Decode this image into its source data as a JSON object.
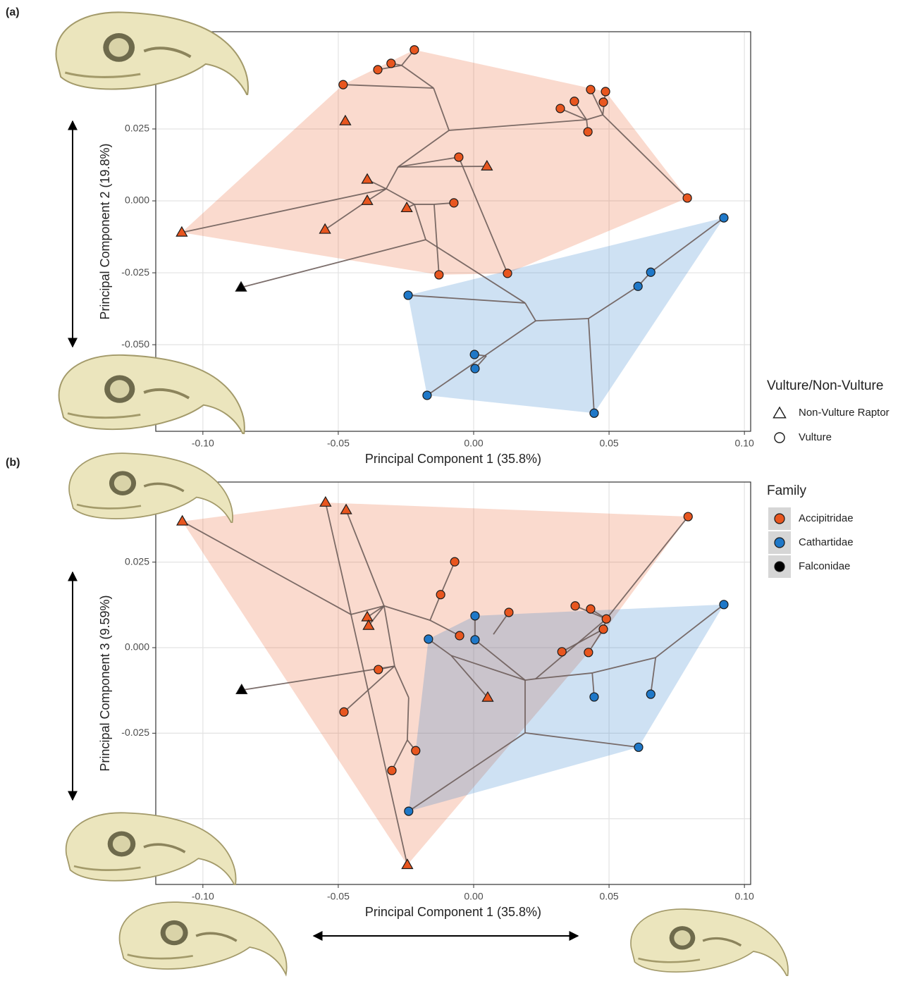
{
  "chart_data": [
    {
      "type": "scatter",
      "label": "(a)",
      "x_label": "Principal Component 1 (35.8%)",
      "y_label": "Principal Component 2 (19.8%)",
      "xlim": [
        -0.1174,
        0.1023
      ],
      "ylim": [
        -0.0801,
        0.0588
      ],
      "xticks": [
        {
          "value": -0.1,
          "label": "-0.10"
        },
        -0.05,
        {
          "value": 0,
          "label": "0.00"
        },
        0.05,
        {
          "value": 0.1,
          "label": "0.10"
        }
      ],
      "yticks": [
        {
          "value": -0.05,
          "label": "-0.050"
        },
        -0.025,
        {
          "value": 0,
          "label": "0.000"
        },
        0.025
      ],
      "grid": true,
      "series": [
        {
          "name": "Accipitridae",
          "marker": "circle",
          "color": "#e8561f",
          "x": [
            -0.0219,
            -0.0305,
            -0.0354,
            -0.0482,
            0.0432,
            0.0487,
            0.0372,
            0.032,
            0.0479,
            0.0422,
            -0.0055,
            -0.0073,
            0.0789,
            -0.0128,
            0.0125
          ],
          "values": [
            0.0525,
            0.0478,
            0.0456,
            0.0404,
            0.0387,
            0.038,
            0.0346,
            0.0321,
            0.0343,
            0.024,
            0.0152,
            -0.0007,
            0.001,
            -0.0257,
            -0.0252
          ]
        },
        {
          "name": "Accipitridae",
          "marker": "triangle",
          "color": "#e8561f",
          "x": [
            -0.0474,
            0.0049,
            -0.0393,
            -0.0393,
            -0.0247,
            -0.0549,
            -0.1078
          ],
          "values": [
            0.0277,
            0.012,
            0.0074,
            0,
            -0.0025,
            -0.01,
            -0.011
          ]
        },
        {
          "name": "Falconidae",
          "marker": "triangle",
          "color": "#000000",
          "x": [
            -0.0859
          ],
          "values": [
            -0.0301
          ]
        },
        {
          "name": "Cathartidae",
          "marker": "circle",
          "color": "#1f78c8",
          "x": [
            0.0924,
            0.0654,
            0.0607,
            -0.0242,
            0.0003,
            0.0005,
            -0.0172,
            0.0445
          ],
          "values": [
            -0.0059,
            -0.0248,
            -0.0297,
            -0.0328,
            -0.0534,
            -0.0583,
            -0.0676,
            -0.0738
          ]
        }
      ],
      "segments": [
        [
          -0.1078,
          -0.011,
          -0.0323,
          0.0042
        ],
        [
          -0.0323,
          0.0042,
          -0.0279,
          0.0118
        ],
        [
          -0.0279,
          0.0118,
          0.0049,
          0.012
        ],
        [
          -0.0279,
          0.0118,
          -0.0091,
          0.0245
        ],
        [
          -0.0091,
          0.0245,
          -0.0148,
          0.0392
        ],
        [
          -0.0148,
          0.0392,
          -0.0482,
          0.0404
        ],
        [
          -0.0148,
          0.0392,
          -0.0266,
          0.0471
        ],
        [
          -0.0266,
          0.0471,
          -0.0219,
          0.0525
        ],
        [
          -0.0266,
          0.0471,
          -0.0305,
          0.0478
        ],
        [
          -0.0266,
          0.0471,
          -0.0354,
          0.0456
        ],
        [
          -0.0091,
          0.0245,
          0.0417,
          0.0282
        ],
        [
          0.0417,
          0.0282,
          0.032,
          0.0321
        ],
        [
          0.0417,
          0.0282,
          0.0372,
          0.0346
        ],
        [
          0.0417,
          0.0282,
          0.0477,
          0.0299
        ],
        [
          0.0477,
          0.0299,
          0.0432,
          0.0387
        ],
        [
          0.0477,
          0.0299,
          0.0487,
          0.038
        ],
        [
          0.0477,
          0.0299,
          0.0789,
          0.001
        ],
        [
          0.0417,
          0.0282,
          0.0422,
          0.024
        ],
        [
          -0.0279,
          0.0118,
          -0.0055,
          0.0152
        ],
        [
          -0.0055,
          0.0152,
          0.0125,
          -0.0252
        ],
        [
          -0.0323,
          0.0042,
          -0.0393,
          0.0074
        ],
        [
          -0.0323,
          0.0042,
          -0.0393,
          0
        ],
        [
          -0.0393,
          0,
          -0.0549,
          -0.01
        ],
        [
          -0.0323,
          0.0042,
          -0.0219,
          -0.0012
        ],
        [
          -0.0219,
          -0.0012,
          -0.0247,
          -0.0025
        ],
        [
          -0.0219,
          -0.0012,
          -0.0146,
          -0.0012
        ],
        [
          -0.0146,
          -0.0012,
          -0.0073,
          -0.0007
        ],
        [
          -0.0146,
          -0.0012,
          -0.0128,
          -0.0257
        ],
        [
          -0.0219,
          -0.0012,
          -0.0177,
          -0.0135
        ],
        [
          -0.0177,
          -0.0135,
          -0.0859,
          -0.0301
        ],
        [
          -0.0177,
          -0.0135,
          0.019,
          -0.0355
        ],
        [
          0.019,
          -0.0355,
          -0.0242,
          -0.0328
        ],
        [
          0.019,
          -0.0355,
          0.0229,
          -0.0417
        ],
        [
          0.0229,
          -0.0417,
          -0.0172,
          -0.0676
        ],
        [
          0.0047,
          -0.0539,
          0.0003,
          -0.0534
        ],
        [
          0.0047,
          -0.0539,
          0.0005,
          -0.0583
        ],
        [
          0.0229,
          -0.0417,
          0.0424,
          -0.0409
        ],
        [
          0.0424,
          -0.0409,
          0.0445,
          -0.0738
        ],
        [
          0.0424,
          -0.0409,
          0.0607,
          -0.0297
        ],
        [
          0.0607,
          -0.0297,
          0.0654,
          -0.0248
        ],
        [
          0.0654,
          -0.0248,
          0.0924,
          -0.0059
        ]
      ]
    },
    {
      "type": "scatter",
      "label": "(b)",
      "x_label": "Principal Component 1 (35.8%)",
      "y_label": "Principal Component 3 (9.59%)",
      "xlim": [
        -0.1174,
        0.1023
      ],
      "ylim": [
        -0.0692,
        0.0484
      ],
      "xticks": [
        {
          "value": -0.1,
          "label": "-0.10"
        },
        -0.05,
        {
          "value": 0,
          "label": "0.00"
        },
        0.05,
        {
          "value": 0.1,
          "label": "0.10"
        }
      ],
      "yticks": [
        {
          "value": -0.05,
          "label": "-0.050"
        },
        -0.025,
        {
          "value": 0,
          "label": "0.000"
        },
        0.025
      ],
      "grid": true,
      "series": [
        {
          "name": "Accipitridae",
          "marker": "triangle",
          "color": "#e8561f",
          "x": [
            -0.1076,
            -0.0547,
            -0.0471,
            -0.0393,
            -0.0388,
            0.0052,
            -0.0245
          ],
          "values": [
            0.0369,
            0.0424,
            0.0402,
            0.0089,
            0.0064,
            -0.0146,
            -0.0635
          ]
        },
        {
          "name": "Accipitridae",
          "marker": "circle",
          "color": "#e8561f",
          "x": [
            0.0792,
            -0.007,
            -0.0122,
            0.013,
            -0.0052,
            0.0375,
            0.0432,
            0.049,
            0.0479,
            0.0326,
            0.0424,
            -0.0352,
            -0.0479,
            -0.0214,
            -0.0302
          ],
          "values": [
            0.0383,
            0.0251,
            0.0155,
            0.0103,
            0.0035,
            0.0122,
            0.0113,
            0.0084,
            0.0054,
            -0.0012,
            -0.0014,
            -0.0064,
            -0.0188,
            -0.0301,
            -0.0359
          ]
        },
        {
          "name": "Cathartidae",
          "marker": "circle",
          "color": "#1f78c8",
          "x": [
            0.0924,
            -0.0167,
            0.0005,
            0.0005,
            0.0445,
            0.0654,
            0.0609,
            -0.024
          ],
          "values": [
            0.0126,
            0.0025,
            0.0093,
            0.0023,
            -0.0144,
            -0.0136,
            -0.0291,
            -0.0478
          ]
        },
        {
          "name": "Falconidae",
          "marker": "triangle",
          "color": "#000000",
          "x": [
            -0.0857
          ],
          "values": [
            -0.0124
          ]
        }
      ],
      "segments": [
        [
          -0.1076,
          0.0369,
          -0.0453,
          0.0097
        ],
        [
          -0.0547,
          0.0424,
          -0.0453,
          0.0097
        ],
        [
          -0.0471,
          0.0402,
          -0.0331,
          0.0122
        ],
        [
          -0.0453,
          0.0097,
          -0.0245,
          -0.0635
        ],
        [
          -0.0453,
          0.0097,
          -0.0331,
          0.0122
        ],
        [
          -0.0331,
          0.0122,
          -0.0393,
          0.0089
        ],
        [
          -0.0331,
          0.0122,
          -0.0388,
          0.0064
        ],
        [
          -0.0331,
          0.0122,
          -0.0161,
          0.008
        ],
        [
          -0.0161,
          0.008,
          -0.0122,
          0.0155
        ],
        [
          -0.0122,
          0.0155,
          -0.007,
          0.0251
        ],
        [
          -0.0161,
          0.008,
          -0.0052,
          0.0035
        ],
        [
          -0.0331,
          0.0122,
          -0.0292,
          -0.0054
        ],
        [
          -0.0292,
          -0.0054,
          -0.0479,
          -0.0188
        ],
        [
          -0.0292,
          -0.0054,
          -0.0857,
          -0.0124
        ],
        [
          -0.0292,
          -0.0054,
          -0.0352,
          -0.0064
        ],
        [
          -0.0292,
          -0.0054,
          -0.024,
          -0.0146
        ],
        [
          -0.024,
          -0.0146,
          -0.0245,
          -0.027
        ],
        [
          -0.0245,
          -0.027,
          -0.0214,
          -0.0301
        ],
        [
          -0.0245,
          -0.027,
          -0.0302,
          -0.0359
        ],
        [
          -0.0167,
          0.0025,
          -0.0083,
          -0.0023
        ],
        [
          -0.0083,
          -0.0023,
          0.0052,
          -0.0146
        ],
        [
          -0.0083,
          -0.0023,
          0.019,
          -0.0095
        ],
        [
          0.019,
          -0.0095,
          0.0229,
          -0.0091
        ],
        [
          0.0229,
          -0.0091,
          0.0438,
          -0.0074
        ],
        [
          0.0438,
          -0.0074,
          0.0445,
          -0.0144
        ],
        [
          0.0438,
          -0.0074,
          0.0672,
          -0.0029
        ],
        [
          0.0672,
          -0.0029,
          0.0654,
          -0.0136
        ],
        [
          0.0672,
          -0.0029,
          0.0924,
          0.0126
        ],
        [
          0.019,
          -0.0095,
          0.019,
          -0.0249
        ],
        [
          0.019,
          -0.0249,
          -0.024,
          -0.0478
        ],
        [
          0.019,
          -0.0249,
          0.0609,
          -0.0291
        ],
        [
          0.019,
          -0.0095,
          0.0005,
          0.0023
        ],
        [
          0.0005,
          0.0023,
          0.0005,
          0.0093
        ],
        [
          0.0073,
          0.0039,
          0.013,
          0.0103
        ],
        [
          0.0229,
          -0.0091,
          0.049,
          0.0084
        ],
        [
          0.049,
          0.0084,
          0.0792,
          0.0383
        ],
        [
          0.049,
          0.0084,
          0.0432,
          0.0113
        ],
        [
          0.049,
          0.0084,
          0.0375,
          0.0122
        ],
        [
          0.049,
          0.0084,
          0.0479,
          0.0054
        ],
        [
          0.0479,
          0.0054,
          0.0424,
          -0.0014
        ],
        [
          0.0479,
          0.0054,
          0.0326,
          -0.0012
        ]
      ]
    }
  ],
  "legends": [
    {
      "title": "Vulture/Non-Vulture",
      "items": [
        {
          "label": "Non-Vulture Raptor",
          "marker": "triangle"
        },
        {
          "label": "Vulture",
          "marker": "circle"
        }
      ]
    },
    {
      "title": "Family",
      "items": [
        {
          "label": "Accipitridae",
          "color": "#e8561f"
        },
        {
          "label": "Cathartidae",
          "color": "#1f78c8"
        },
        {
          "label": "Falconidae",
          "color": "#000000"
        }
      ]
    }
  ]
}
